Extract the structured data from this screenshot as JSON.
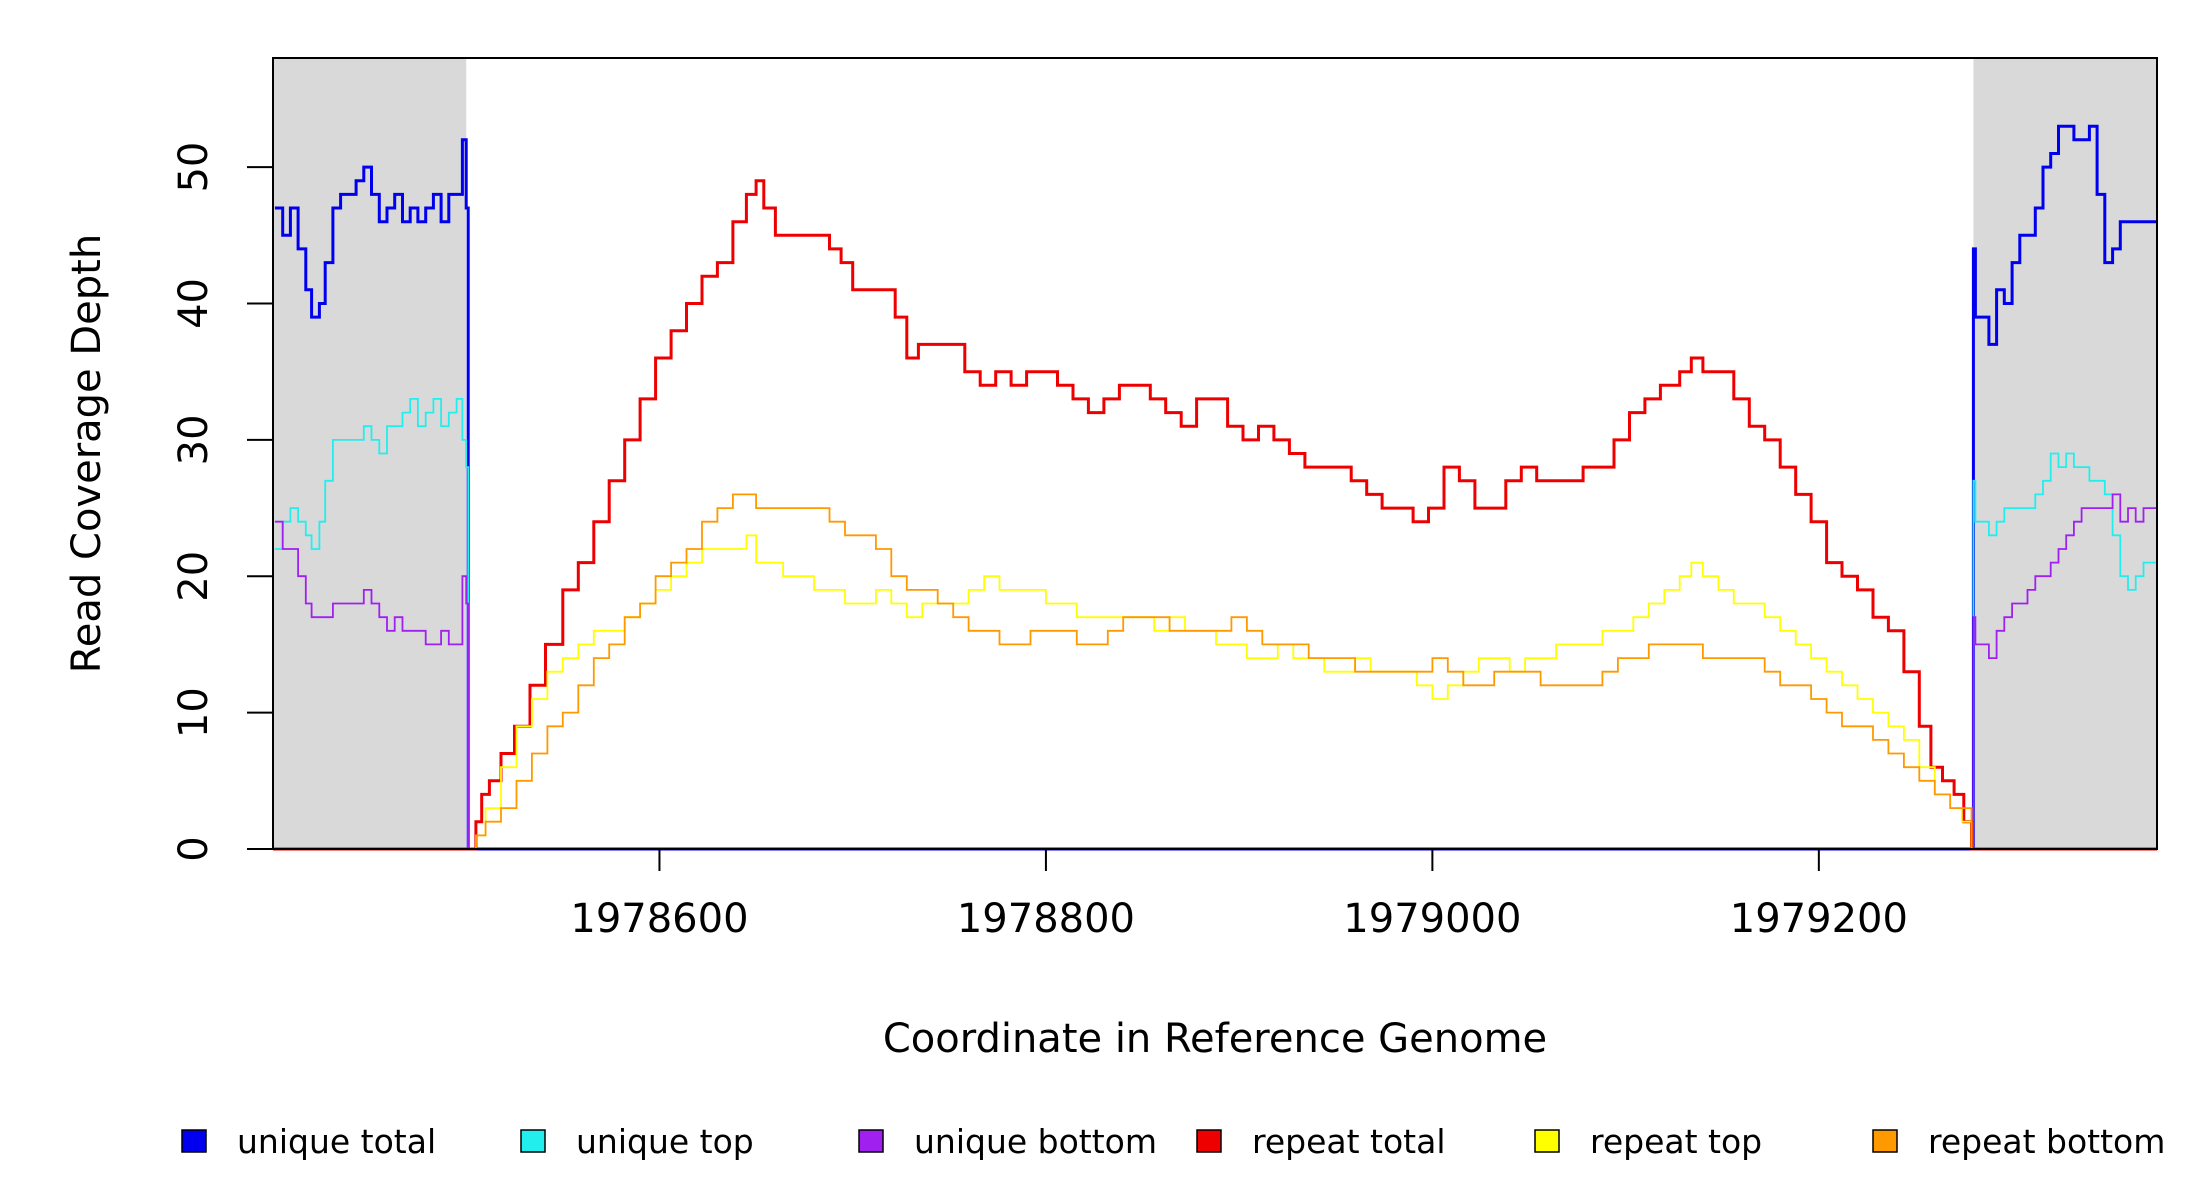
{
  "chart_data": {
    "type": "line",
    "title": "",
    "xlabel": "Coordinate in Reference Genome",
    "ylabel": "Read Coverage Depth",
    "xlim": [
      1978400,
      1979375
    ],
    "ylim": [
      0,
      58
    ],
    "x_ticks": [
      1978600,
      1978800,
      1979000,
      1979200
    ],
    "x_tick_labels": [
      "1978600",
      "1978800",
      "1979000",
      "1979200"
    ],
    "y_ticks": [
      0,
      10,
      20,
      30,
      40,
      50
    ],
    "y_tick_labels": [
      "0",
      "10",
      "20",
      "30",
      "40",
      "50"
    ],
    "shaded_regions": [
      {
        "x0": 1978400,
        "x1": 1978500,
        "color": "#d9d9d9"
      },
      {
        "x0": 1979280,
        "x1": 1979375,
        "color": "#d9d9d9"
      }
    ],
    "grid": false,
    "legend_position": "bottom",
    "series": [
      {
        "name": "unique total",
        "color": "#0000ee",
        "x": [
          1978401,
          1978405,
          1978409,
          1978413,
          1978417,
          1978420,
          1978424,
          1978427,
          1978431,
          1978435,
          1978439,
          1978443,
          1978447,
          1978451,
          1978455,
          1978459,
          1978463,
          1978467,
          1978471,
          1978475,
          1978479,
          1978483,
          1978487,
          1978491,
          1978495,
          1978498,
          1978500,
          1978501,
          1978501,
          1979279,
          1979280,
          1979281,
          1979284,
          1979288,
          1979292,
          1979296,
          1979300,
          1979304,
          1979308,
          1979312,
          1979316,
          1979320,
          1979324,
          1979328,
          1979332,
          1979336,
          1979340,
          1979344,
          1979348,
          1979352,
          1979356,
          1979360,
          1979364,
          1979368,
          1979372,
          1979375
        ],
        "y": [
          47,
          45,
          47,
          44,
          41,
          39,
          40,
          43,
          47,
          48,
          48,
          49,
          50,
          48,
          46,
          47,
          48,
          46,
          47,
          46,
          47,
          48,
          46,
          48,
          48,
          52,
          47,
          45,
          0,
          0,
          44,
          39,
          39,
          37,
          41,
          40,
          43,
          45,
          45,
          47,
          50,
          51,
          53,
          53,
          52,
          52,
          53,
          48,
          43,
          44,
          46,
          46,
          46,
          46,
          46,
          46
        ]
      },
      {
        "name": "unique top",
        "color": "#22eeee",
        "x": [
          1978401,
          1978405,
          1978409,
          1978413,
          1978417,
          1978420,
          1978424,
          1978427,
          1978431,
          1978435,
          1978439,
          1978443,
          1978447,
          1978451,
          1978455,
          1978459,
          1978463,
          1978467,
          1978471,
          1978475,
          1978479,
          1978483,
          1978487,
          1978491,
          1978495,
          1978498,
          1978500,
          1978501,
          1978501,
          1979279,
          1979280,
          1979281,
          1979284,
          1979288,
          1979292,
          1979296,
          1979300,
          1979304,
          1979308,
          1979312,
          1979316,
          1979320,
          1979324,
          1979328,
          1979332,
          1979336,
          1979340,
          1979344,
          1979348,
          1979352,
          1979356,
          1979360,
          1979364,
          1979368,
          1979372,
          1979375
        ],
        "y": [
          22,
          24,
          25,
          24,
          23,
          22,
          24,
          27,
          30,
          30,
          30,
          30,
          31,
          30,
          29,
          31,
          31,
          32,
          33,
          31,
          32,
          33,
          31,
          32,
          33,
          30,
          28,
          27,
          0,
          0,
          27,
          24,
          24,
          23,
          24,
          25,
          25,
          25,
          25,
          26,
          27,
          29,
          28,
          29,
          28,
          28,
          27,
          27,
          26,
          23,
          20,
          19,
          20,
          21,
          21,
          21
        ]
      },
      {
        "name": "unique bottom",
        "color": "#a020f0",
        "x": [
          1978401,
          1978405,
          1978409,
          1978413,
          1978417,
          1978420,
          1978424,
          1978427,
          1978431,
          1978435,
          1978439,
          1978443,
          1978447,
          1978451,
          1978455,
          1978459,
          1978463,
          1978467,
          1978471,
          1978475,
          1978479,
          1978483,
          1978487,
          1978491,
          1978495,
          1978498,
          1978500,
          1978501,
          1978501,
          1979279,
          1979280,
          1979281,
          1979284,
          1979288,
          1979292,
          1979296,
          1979300,
          1979304,
          1979308,
          1979312,
          1979316,
          1979320,
          1979324,
          1979328,
          1979332,
          1979336,
          1979340,
          1979344,
          1979348,
          1979352,
          1979356,
          1979360,
          1979364,
          1979368,
          1979372,
          1979375
        ],
        "y": [
          24,
          22,
          22,
          20,
          18,
          17,
          17,
          17,
          18,
          18,
          18,
          18,
          19,
          18,
          17,
          16,
          17,
          16,
          16,
          16,
          15,
          15,
          16,
          15,
          15,
          20,
          18,
          17,
          0,
          0,
          17,
          15,
          15,
          14,
          16,
          17,
          18,
          18,
          19,
          20,
          20,
          21,
          22,
          23,
          24,
          25,
          25,
          25,
          25,
          26,
          24,
          25,
          24,
          25,
          25,
          25
        ]
      },
      {
        "name": "repeat total",
        "color": "#ee0000",
        "x": [
          1978400,
          1978500,
          1978505,
          1978508,
          1978512,
          1978518,
          1978525,
          1978533,
          1978541,
          1978550,
          1978558,
          1978566,
          1978574,
          1978582,
          1978590,
          1978598,
          1978606,
          1978614,
          1978622,
          1978630,
          1978638,
          1978645,
          1978650,
          1978654,
          1978660,
          1978666,
          1978672,
          1978680,
          1978688,
          1978694,
          1978700,
          1978708,
          1978716,
          1978722,
          1978728,
          1978734,
          1978742,
          1978750,
          1978758,
          1978766,
          1978774,
          1978782,
          1978790,
          1978798,
          1978806,
          1978814,
          1978822,
          1978830,
          1978838,
          1978846,
          1978854,
          1978862,
          1978870,
          1978878,
          1978886,
          1978894,
          1978902,
          1978910,
          1978918,
          1978926,
          1978934,
          1978942,
          1978950,
          1978958,
          1978966,
          1978974,
          1978982,
          1978990,
          1978998,
          1979006,
          1979014,
          1979022,
          1979030,
          1979038,
          1979046,
          1979054,
          1979062,
          1979070,
          1979078,
          1979086,
          1979094,
          1979102,
          1979110,
          1979118,
          1979124,
          1979128,
          1979134,
          1979140,
          1979148,
          1979156,
          1979164,
          1979172,
          1979180,
          1979188,
          1979196,
          1979204,
          1979212,
          1979220,
          1979228,
          1979236,
          1979244,
          1979252,
          1979258,
          1979264,
          1979270,
          1979275,
          1979279,
          1979375
        ],
        "y": [
          0,
          0,
          2,
          4,
          5,
          7,
          9,
          12,
          15,
          19,
          21,
          24,
          27,
          30,
          33,
          36,
          38,
          40,
          42,
          43,
          46,
          48,
          49,
          47,
          45,
          45,
          45,
          45,
          44,
          43,
          41,
          41,
          41,
          39,
          36,
          37,
          37,
          37,
          35,
          34,
          35,
          34,
          35,
          35,
          34,
          33,
          32,
          33,
          34,
          34,
          33,
          32,
          31,
          33,
          33,
          31,
          30,
          31,
          30,
          29,
          28,
          28,
          28,
          27,
          26,
          25,
          25,
          24,
          25,
          28,
          27,
          25,
          25,
          27,
          28,
          27,
          27,
          27,
          28,
          28,
          30,
          32,
          33,
          34,
          34,
          35,
          36,
          35,
          35,
          33,
          31,
          30,
          28,
          26,
          24,
          21,
          20,
          19,
          17,
          16,
          13,
          9,
          6,
          5,
          4,
          2,
          0,
          0
        ]
      },
      {
        "name": "repeat top",
        "color": "#ffff00",
        "x": [
          1978400,
          1978500,
          1978505,
          1978510,
          1978518,
          1978526,
          1978534,
          1978542,
          1978550,
          1978558,
          1978566,
          1978574,
          1978582,
          1978590,
          1978598,
          1978606,
          1978614,
          1978622,
          1978630,
          1978638,
          1978645,
          1978650,
          1978656,
          1978664,
          1978672,
          1978680,
          1978688,
          1978696,
          1978704,
          1978712,
          1978720,
          1978728,
          1978736,
          1978744,
          1978752,
          1978760,
          1978768,
          1978776,
          1978784,
          1978792,
          1978800,
          1978808,
          1978816,
          1978824,
          1978832,
          1978840,
          1978848,
          1978856,
          1978864,
          1978872,
          1978880,
          1978888,
          1978896,
          1978904,
          1978912,
          1978920,
          1978928,
          1978936,
          1978944,
          1978952,
          1978960,
          1978968,
          1978976,
          1978984,
          1978992,
          1979000,
          1979008,
          1979016,
          1979024,
          1979032,
          1979040,
          1979048,
          1979056,
          1979064,
          1979072,
          1979080,
          1979088,
          1979096,
          1979104,
          1979112,
          1979120,
          1979128,
          1979134,
          1979140,
          1979148,
          1979156,
          1979164,
          1979172,
          1979180,
          1979188,
          1979196,
          1979204,
          1979212,
          1979220,
          1979228,
          1979236,
          1979244,
          1979252,
          1979260,
          1979268,
          1979274,
          1979279,
          1979375
        ],
        "y": [
          0,
          0,
          1,
          3,
          6,
          9,
          11,
          13,
          14,
          15,
          16,
          16,
          17,
          18,
          19,
          20,
          21,
          22,
          22,
          22,
          23,
          21,
          21,
          20,
          20,
          19,
          19,
          18,
          18,
          19,
          18,
          17,
          18,
          18,
          18,
          19,
          20,
          19,
          19,
          19,
          18,
          18,
          17,
          17,
          17,
          17,
          17,
          16,
          17,
          16,
          16,
          15,
          15,
          14,
          14,
          15,
          14,
          14,
          13,
          13,
          14,
          13,
          13,
          13,
          12,
          11,
          12,
          13,
          14,
          14,
          13,
          14,
          14,
          15,
          15,
          15,
          16,
          16,
          17,
          18,
          19,
          20,
          21,
          20,
          19,
          18,
          18,
          17,
          16,
          15,
          14,
          13,
          12,
          11,
          10,
          9,
          8,
          6,
          4,
          3,
          2,
          0,
          0
        ]
      },
      {
        "name": "repeat bottom",
        "color": "#ff9900",
        "x": [
          1978400,
          1978500,
          1978505,
          1978510,
          1978518,
          1978526,
          1978534,
          1978542,
          1978550,
          1978558,
          1978566,
          1978574,
          1978582,
          1978590,
          1978598,
          1978606,
          1978614,
          1978622,
          1978630,
          1978638,
          1978645,
          1978650,
          1978656,
          1978664,
          1978672,
          1978680,
          1978688,
          1978696,
          1978704,
          1978712,
          1978720,
          1978728,
          1978736,
          1978744,
          1978752,
          1978760,
          1978768,
          1978776,
          1978784,
          1978792,
          1978800,
          1978808,
          1978816,
          1978824,
          1978832,
          1978840,
          1978848,
          1978856,
          1978864,
          1978872,
          1978880,
          1978888,
          1978896,
          1978904,
          1978912,
          1978920,
          1978928,
          1978936,
          1978944,
          1978952,
          1978960,
          1978968,
          1978976,
          1978984,
          1978992,
          1979000,
          1979008,
          1979016,
          1979024,
          1979032,
          1979040,
          1979048,
          1979056,
          1979064,
          1979072,
          1979080,
          1979088,
          1979096,
          1979104,
          1979112,
          1979120,
          1979128,
          1979134,
          1979140,
          1979148,
          1979156,
          1979164,
          1979172,
          1979180,
          1979188,
          1979196,
          1979204,
          1979212,
          1979220,
          1979228,
          1979236,
          1979244,
          1979252,
          1979260,
          1979268,
          1979274,
          1979279,
          1979375
        ],
        "y": [
          0,
          0,
          1,
          2,
          3,
          5,
          7,
          9,
          10,
          12,
          14,
          15,
          17,
          18,
          20,
          21,
          22,
          24,
          25,
          26,
          26,
          25,
          25,
          25,
          25,
          25,
          24,
          23,
          23,
          22,
          20,
          19,
          19,
          18,
          17,
          16,
          16,
          15,
          15,
          16,
          16,
          16,
          15,
          15,
          16,
          17,
          17,
          17,
          16,
          16,
          16,
          16,
          17,
          16,
          15,
          15,
          15,
          14,
          14,
          14,
          13,
          13,
          13,
          13,
          13,
          14,
          13,
          12,
          12,
          13,
          13,
          13,
          12,
          12,
          12,
          12,
          13,
          14,
          14,
          15,
          15,
          15,
          15,
          14,
          14,
          14,
          14,
          13,
          12,
          12,
          11,
          10,
          9,
          9,
          8,
          7,
          6,
          5,
          4,
          3,
          3,
          0,
          0
        ]
      }
    ]
  }
}
